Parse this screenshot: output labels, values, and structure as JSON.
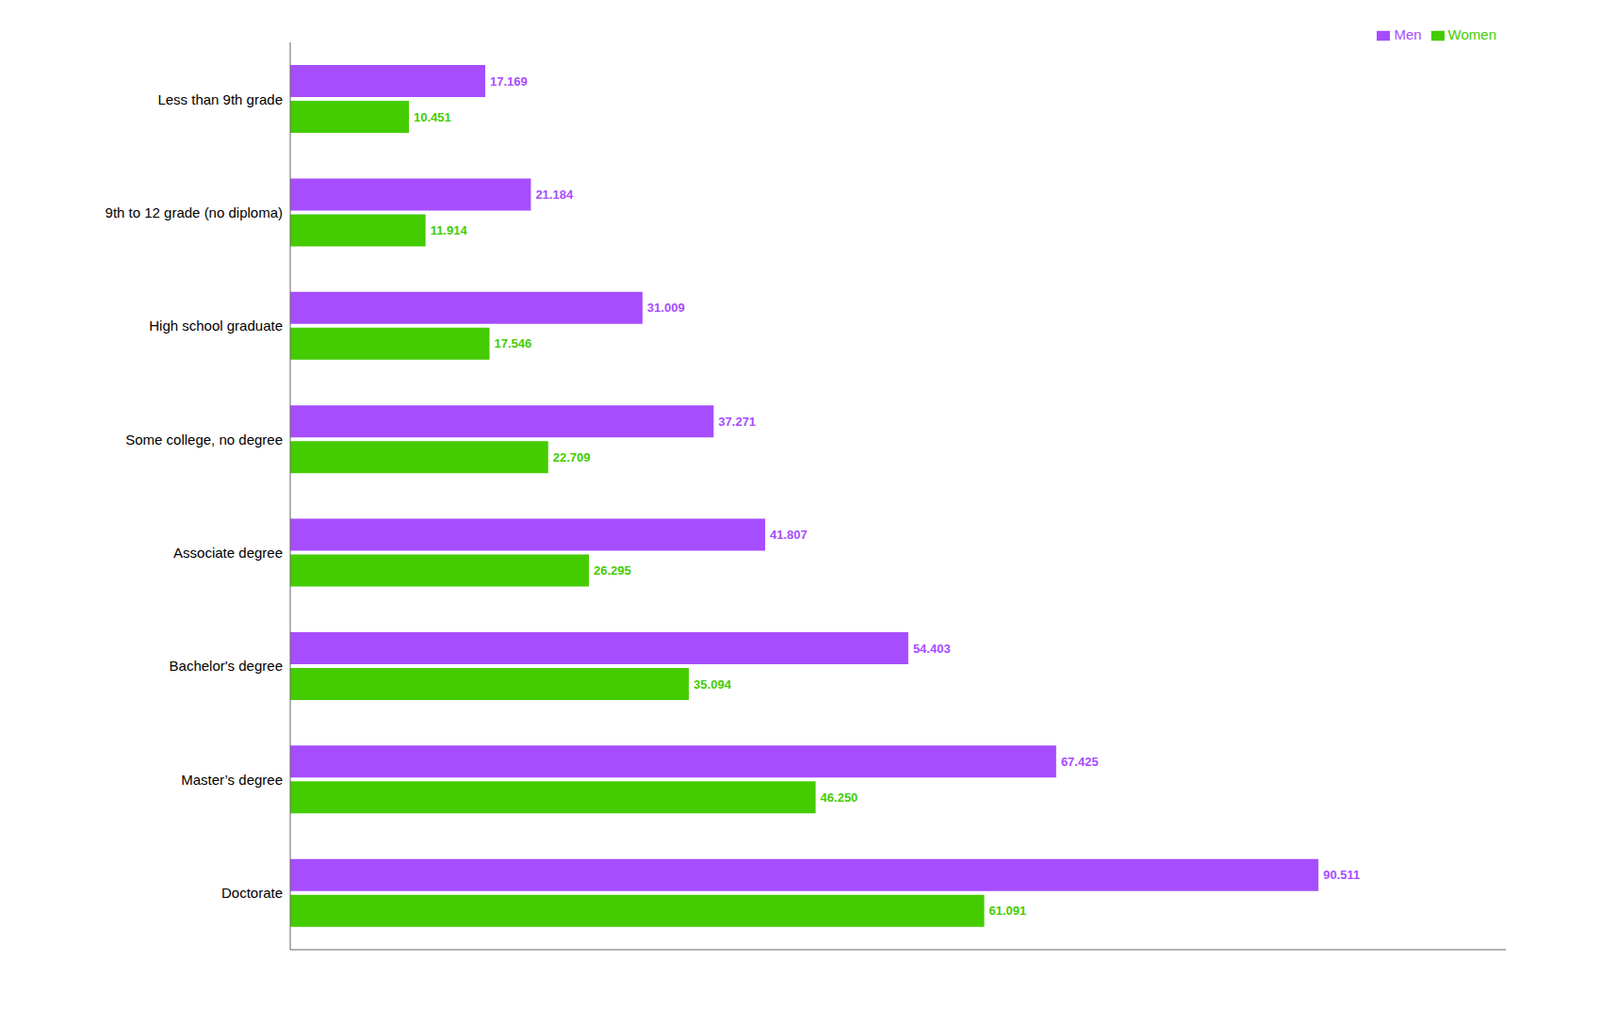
{
  "chart_data": {
    "type": "bar",
    "orientation": "horizontal",
    "categories": [
      "Less than 9th grade",
      "9th to 12 grade (no diploma)",
      "High school graduate",
      "Some college, no degree",
      "Associate degree",
      "Bachelor's degree",
      "Master’s degree",
      "Doctorate"
    ],
    "series": [
      {
        "name": "Men",
        "color": "#a64dff",
        "values": [
          17.169,
          21.184,
          31.009,
          37.271,
          41.807,
          54.403,
          67.425,
          90.511
        ],
        "value_labels": [
          "17.169",
          "21.184",
          "31.009",
          "37.271",
          "41.807",
          "54.403",
          "67.425",
          "90.511"
        ]
      },
      {
        "name": "Women",
        "color": "#44cc00",
        "values": [
          10.451,
          11.914,
          17.546,
          22.709,
          26.295,
          35.094,
          46.25,
          61.091
        ],
        "value_labels": [
          "10.451",
          "11.914",
          "17.546",
          "22.709",
          "26.295",
          "35.094",
          "46.250",
          "61.091"
        ]
      }
    ],
    "xlim": [
      0,
      107
    ],
    "data_labels": true,
    "tick_labels": "y",
    "legend": "upper right",
    "grid": false
  }
}
